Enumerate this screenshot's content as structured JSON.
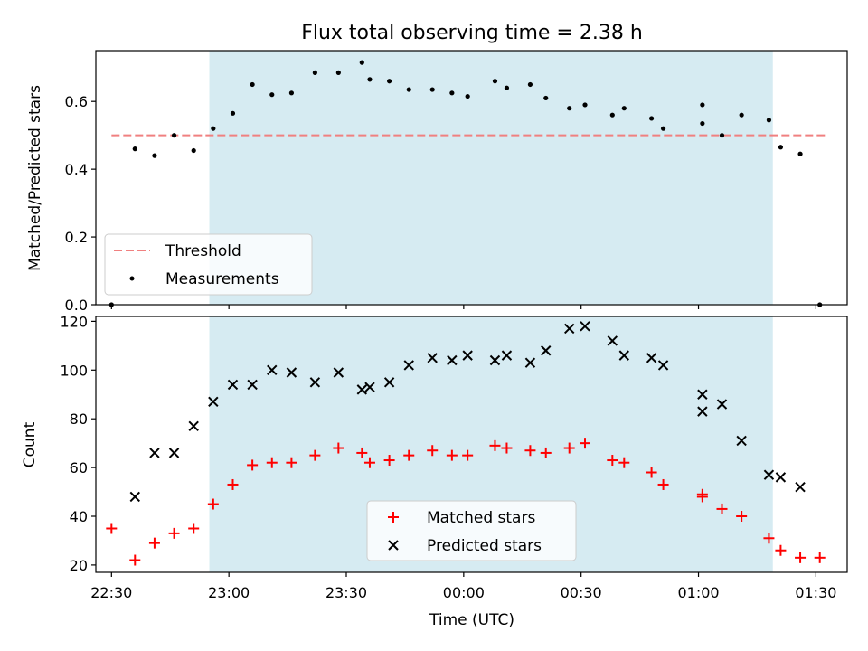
{
  "chart_data": {
    "title": "Flux total observing time = 2.38 h",
    "xlabel": "Time (UTC)",
    "xlim": [
      "22:26",
      "01:38"
    ],
    "xticks": [
      "22:30",
      "23:00",
      "23:30",
      "00:00",
      "00:30",
      "01:00",
      "01:30"
    ],
    "shaded_span": {
      "start": "22:55",
      "end": "01:19",
      "color": "#add8e6"
    },
    "panels": [
      {
        "type": "scatter",
        "ylabel": "Matched/Predicted stars",
        "ylim": [
          0,
          0.75
        ],
        "yticks": [
          "0.0",
          "0.2",
          "0.4",
          "0.6"
        ],
        "legend_position": "lower-left",
        "lines": [
          {
            "name": "Threshold",
            "style": "dashed",
            "color": "#f08080",
            "y": 0.5,
            "x_range": [
              "22:30",
              "01:33"
            ]
          }
        ],
        "series": [
          {
            "name": "Measurements",
            "marker": "dot",
            "color": "#000000",
            "points": [
              [
                "22:30",
                0.0
              ],
              [
                "22:36",
                0.46
              ],
              [
                "22:41",
                0.44
              ],
              [
                "22:46",
                0.5
              ],
              [
                "22:51",
                0.455
              ],
              [
                "22:56",
                0.52
              ],
              [
                "23:01",
                0.565
              ],
              [
                "23:06",
                0.65
              ],
              [
                "23:11",
                0.62
              ],
              [
                "23:16",
                0.625
              ],
              [
                "23:22",
                0.685
              ],
              [
                "23:28",
                0.685
              ],
              [
                "23:34",
                0.715
              ],
              [
                "23:36",
                0.665
              ],
              [
                "23:41",
                0.66
              ],
              [
                "23:46",
                0.635
              ],
              [
                "23:52",
                0.635
              ],
              [
                "23:57",
                0.625
              ],
              [
                "00:01",
                0.615
              ],
              [
                "00:08",
                0.66
              ],
              [
                "00:11",
                0.64
              ],
              [
                "00:17",
                0.65
              ],
              [
                "00:21",
                0.61
              ],
              [
                "00:27",
                0.58
              ],
              [
                "00:31",
                0.59
              ],
              [
                "00:38",
                0.56
              ],
              [
                "00:41",
                0.58
              ],
              [
                "00:48",
                0.55
              ],
              [
                "00:51",
                0.52
              ],
              [
                "01:01",
                0.535
              ],
              [
                "01:01",
                0.59
              ],
              [
                "01:06",
                0.5
              ],
              [
                "01:11",
                0.56
              ],
              [
                "01:18",
                0.545
              ],
              [
                "01:21",
                0.465
              ],
              [
                "01:26",
                0.445
              ],
              [
                "01:31",
                0.0
              ]
            ]
          }
        ]
      },
      {
        "type": "scatter",
        "ylabel": "Count",
        "ylim": [
          17,
          122
        ],
        "yticks": [
          "20",
          "40",
          "60",
          "80",
          "100",
          "120"
        ],
        "legend_position": "lower-center",
        "series": [
          {
            "name": "Matched stars",
            "marker": "plus",
            "color": "#ff0000",
            "points": [
              [
                "22:30",
                35
              ],
              [
                "22:36",
                22
              ],
              [
                "22:41",
                29
              ],
              [
                "22:46",
                33
              ],
              [
                "22:51",
                35
              ],
              [
                "22:56",
                45
              ],
              [
                "23:01",
                53
              ],
              [
                "23:06",
                61
              ],
              [
                "23:11",
                62
              ],
              [
                "23:16",
                62
              ],
              [
                "23:22",
                65
              ],
              [
                "23:28",
                68
              ],
              [
                "23:34",
                66
              ],
              [
                "23:36",
                62
              ],
              [
                "23:41",
                63
              ],
              [
                "23:46",
                65
              ],
              [
                "23:52",
                67
              ],
              [
                "23:57",
                65
              ],
              [
                "00:01",
                65
              ],
              [
                "00:08",
                69
              ],
              [
                "00:11",
                68
              ],
              [
                "00:17",
                67
              ],
              [
                "00:21",
                66
              ],
              [
                "00:27",
                68
              ],
              [
                "00:31",
                70
              ],
              [
                "00:38",
                63
              ],
              [
                "00:41",
                62
              ],
              [
                "00:48",
                58
              ],
              [
                "00:51",
                53
              ],
              [
                "01:01",
                48
              ],
              [
                "01:01",
                49
              ],
              [
                "01:06",
                43
              ],
              [
                "01:11",
                40
              ],
              [
                "01:18",
                31
              ],
              [
                "01:21",
                26
              ],
              [
                "01:26",
                23
              ],
              [
                "01:31",
                23
              ]
            ]
          },
          {
            "name": "Predicted stars",
            "marker": "x",
            "color": "#000000",
            "points": [
              [
                "22:36",
                48
              ],
              [
                "22:41",
                66
              ],
              [
                "22:46",
                66
              ],
              [
                "22:51",
                77
              ],
              [
                "22:56",
                87
              ],
              [
                "23:01",
                94
              ],
              [
                "23:06",
                94
              ],
              [
                "23:11",
                100
              ],
              [
                "23:16",
                99
              ],
              [
                "23:22",
                95
              ],
              [
                "23:28",
                99
              ],
              [
                "23:34",
                92
              ],
              [
                "23:36",
                93
              ],
              [
                "23:41",
                95
              ],
              [
                "23:46",
                102
              ],
              [
                "23:52",
                105
              ],
              [
                "23:57",
                104
              ],
              [
                "00:01",
                106
              ],
              [
                "00:08",
                104
              ],
              [
                "00:11",
                106
              ],
              [
                "00:17",
                103
              ],
              [
                "00:21",
                108
              ],
              [
                "00:27",
                117
              ],
              [
                "00:31",
                118
              ],
              [
                "00:38",
                112
              ],
              [
                "00:41",
                106
              ],
              [
                "00:48",
                105
              ],
              [
                "00:51",
                102
              ],
              [
                "01:01",
                90
              ],
              [
                "01:01",
                83
              ],
              [
                "01:06",
                86
              ],
              [
                "01:11",
                71
              ],
              [
                "01:18",
                57
              ],
              [
                "01:21",
                56
              ],
              [
                "01:26",
                52
              ]
            ]
          }
        ]
      }
    ]
  }
}
